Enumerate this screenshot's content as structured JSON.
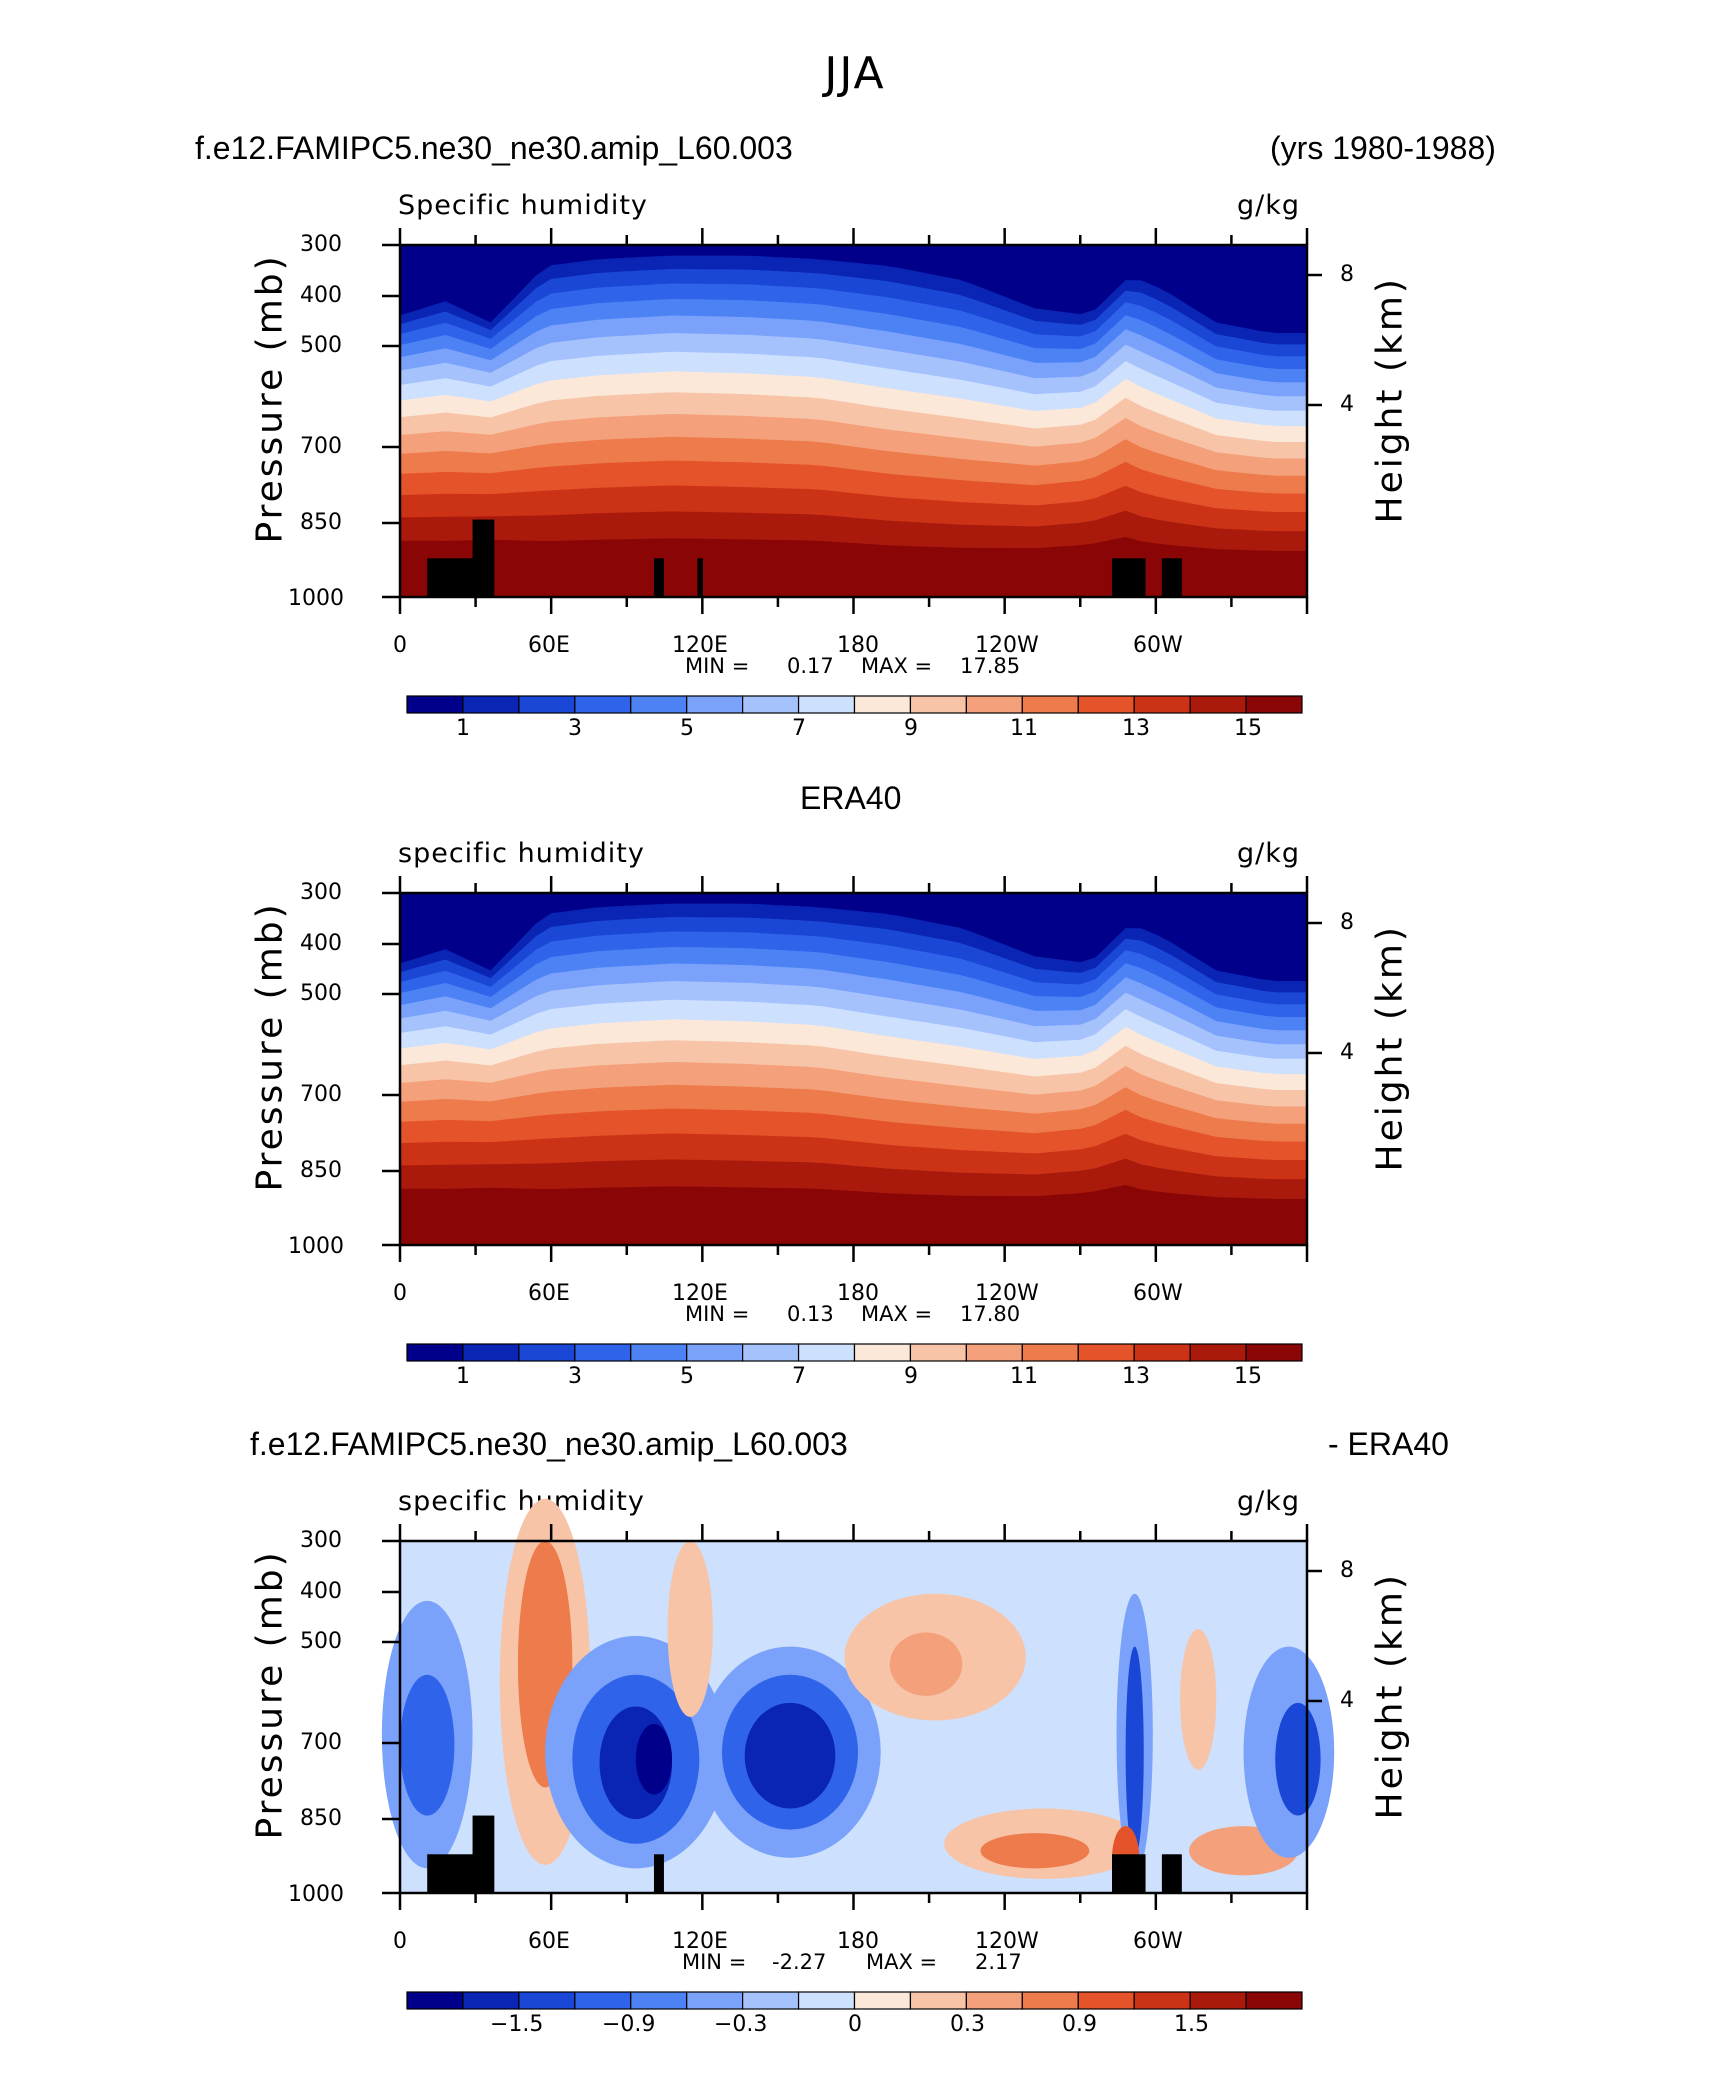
{
  "figure": {
    "title": "JJA"
  },
  "chart_data": [
    {
      "type": "heatmap",
      "heading_left": "f.e12.FAMIPC5.ne30_ne30.amip_L60.003",
      "heading_right": "(yrs 1980-1988)",
      "subtitle": "Specific humidity",
      "units": "g/kg",
      "ylabel_left": "Pressure (mb)",
      "ylabel_right": "Height (km)",
      "y_ticks": [
        "300",
        "400",
        "500",
        "700",
        "850",
        "1000"
      ],
      "y_right_ticks": [
        "8",
        "4"
      ],
      "x_ticks": [
        "0",
        "60E",
        "120E",
        "180",
        "120W",
        "60W"
      ],
      "min_label": "MIN =",
      "min_value": "0.17",
      "max_label": "MAX =",
      "max_value": "17.85",
      "colorbar_labels": [
        "1",
        "3",
        "5",
        "7",
        "9",
        "11",
        "13",
        "15"
      ],
      "colors": [
        "#00008b",
        "#0a24b4",
        "#1a47d6",
        "#2f64ea",
        "#4d82f5",
        "#7aa2fb",
        "#a5c2fd",
        "#cde0fe",
        "#fbe8d8",
        "#f8c4a8",
        "#f4a17b",
        "#ee7b4c",
        "#e5532a",
        "#cc3316",
        "#a9190c",
        "#8a0505"
      ]
    },
    {
      "type": "heatmap",
      "heading_center": "ERA40",
      "subtitle": "specific humidity",
      "units": "g/kg",
      "ylabel_left": "Pressure (mb)",
      "ylabel_right": "Height (km)",
      "y_ticks": [
        "300",
        "400",
        "500",
        "700",
        "850",
        "1000"
      ],
      "y_right_ticks": [
        "8",
        "4"
      ],
      "x_ticks": [
        "0",
        "60E",
        "120E",
        "180",
        "120W",
        "60W"
      ],
      "min_label": "MIN =",
      "min_value": "0.13",
      "max_label": "MAX =",
      "max_value": "17.80",
      "colorbar_labels": [
        "1",
        "3",
        "5",
        "7",
        "9",
        "11",
        "13",
        "15"
      ],
      "colors": [
        "#00008b",
        "#0a24b4",
        "#1a47d6",
        "#2f64ea",
        "#4d82f5",
        "#7aa2fb",
        "#a5c2fd",
        "#cde0fe",
        "#fbe8d8",
        "#f8c4a8",
        "#f4a17b",
        "#ee7b4c",
        "#e5532a",
        "#cc3316",
        "#a9190c",
        "#8a0505"
      ]
    },
    {
      "type": "heatmap",
      "heading_left": "f.e12.FAMIPC5.ne30_ne30.amip_L60.003",
      "heading_right": "- ERA40",
      "subtitle": "specific humidity",
      "units": "g/kg",
      "ylabel_left": "Pressure (mb)",
      "ylabel_right": "Height (km)",
      "y_ticks": [
        "300",
        "400",
        "500",
        "700",
        "850",
        "1000"
      ],
      "y_right_ticks": [
        "8",
        "4"
      ],
      "x_ticks": [
        "0",
        "60E",
        "120E",
        "180",
        "120W",
        "60W"
      ],
      "min_label": "MIN =",
      "min_value": "-2.27",
      "max_label": "MAX =",
      "max_value": "2.17",
      "colorbar_labels": [
        "−1.5",
        "−0.9",
        "−0.3",
        "0",
        "0.3",
        "0.9",
        "1.5"
      ],
      "colors": [
        "#00008b",
        "#0a24b4",
        "#1a47d6",
        "#2f64ea",
        "#4d82f5",
        "#7aa2fb",
        "#a5c2fd",
        "#cde0fe",
        "#fbe8d8",
        "#f8c4a8",
        "#f4a17b",
        "#ee7b4c",
        "#e5532a",
        "#cc3316",
        "#a9190c",
        "#8a0505"
      ]
    }
  ]
}
